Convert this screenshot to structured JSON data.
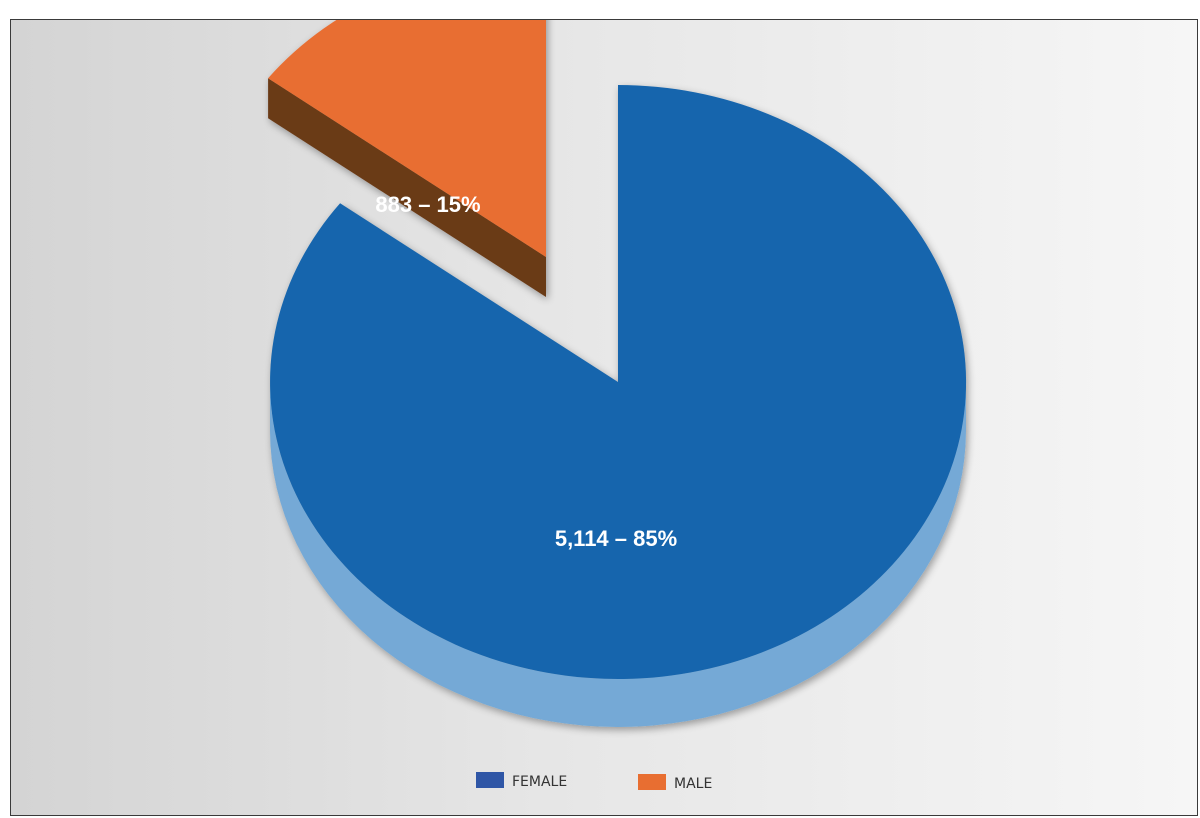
{
  "chart_data": {
    "type": "pie",
    "title": "",
    "slices": [
      {
        "name": "FEMALE",
        "value": 5114,
        "percent": 85,
        "label": "5,114 – 85%",
        "color": "#1565ad",
        "side_color": "#74a9d6"
      },
      {
        "name": "MALE",
        "value": 883,
        "percent": 15,
        "label": "883 – 15%",
        "color": "#e86e31",
        "side_color": "#6b3a17"
      }
    ],
    "exploded": "MALE",
    "style": "3d",
    "legend": {
      "position": "bottom",
      "entries": [
        "FEMALE",
        "MALE"
      ]
    }
  }
}
